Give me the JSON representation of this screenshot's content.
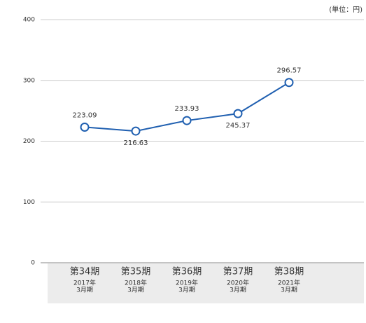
{
  "chart_data": {
    "type": "line",
    "unit_label": "(単位：円)",
    "categories": [
      [
        "第34期",
        "2017年",
        "3月期"
      ],
      [
        "第35期",
        "2018年",
        "3月期"
      ],
      [
        "第36期",
        "2019年",
        "3月期"
      ],
      [
        "第37期",
        "2020年",
        "3月期"
      ],
      [
        "第38期",
        "2021年",
        "3月期"
      ]
    ],
    "series": [
      {
        "color": "#1f5fb0",
        "values": [
          223.09,
          216.63,
          233.93,
          245.37,
          296.57
        ]
      }
    ],
    "ylim": [
      0,
      400
    ],
    "yticks": [
      0,
      100,
      200,
      300,
      400
    ],
    "grid": true
  }
}
